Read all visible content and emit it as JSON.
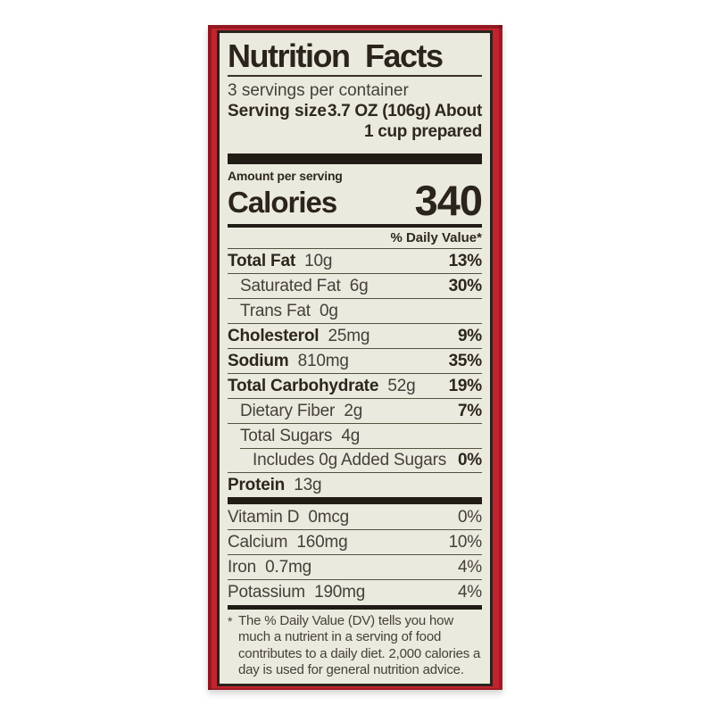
{
  "colors": {
    "box_red": "#c1242e",
    "label_bg": "#ebeade",
    "ink": "#2b241d"
  },
  "label": {
    "title": "Nutrition Facts",
    "servings_per_container": "3 servings per container",
    "serving_size": {
      "label": "Serving size",
      "value_line1": "3.7 OZ (106g) About",
      "value_line2": "1 cup prepared"
    },
    "amount_per_serving": "Amount per serving",
    "calories": {
      "label": "Calories",
      "value": "340"
    },
    "daily_value_header": "% Daily Value*",
    "nutrients": [
      {
        "name": "Total Fat",
        "amount": "10g",
        "dv": "13%",
        "bold": true,
        "indent": 0
      },
      {
        "name": "Saturated Fat",
        "amount": "6g",
        "dv": "30%",
        "bold": false,
        "indent": 1
      },
      {
        "name": "Trans Fat",
        "amount": "0g",
        "dv": "",
        "bold": false,
        "indent": 1
      },
      {
        "name": "Cholesterol",
        "amount": "25mg",
        "dv": "9%",
        "bold": true,
        "indent": 0
      },
      {
        "name": "Sodium",
        "amount": "810mg",
        "dv": "35%",
        "bold": true,
        "indent": 0
      },
      {
        "name": "Total Carbohydrate",
        "amount": "52g",
        "dv": "19%",
        "bold": true,
        "indent": 0
      },
      {
        "name": "Dietary Fiber",
        "amount": "2g",
        "dv": "7%",
        "bold": false,
        "indent": 1
      },
      {
        "name": "Total Sugars",
        "amount": "4g",
        "dv": "",
        "bold": false,
        "indent": 1
      },
      {
        "name": "Includes 0g Added Sugars",
        "amount": "",
        "dv": "0%",
        "bold": false,
        "indent": 2,
        "rule_indent": true
      },
      {
        "name": "Protein",
        "amount": "13g",
        "dv": "",
        "bold": true,
        "indent": 0
      }
    ],
    "vitamins": [
      {
        "name": "Vitamin D",
        "amount": "0mcg",
        "dv": "0%"
      },
      {
        "name": "Calcium",
        "amount": "160mg",
        "dv": "10%"
      },
      {
        "name": "Iron",
        "amount": "0.7mg",
        "dv": "4%"
      },
      {
        "name": "Potassium",
        "amount": "190mg",
        "dv": "4%"
      }
    ],
    "footnote": {
      "marker": "*",
      "text": "The % Daily Value (DV) tells you how much a nutrient in a serving of food contributes to a daily diet. 2,000 calories a day is used for general nutrition advice."
    }
  }
}
